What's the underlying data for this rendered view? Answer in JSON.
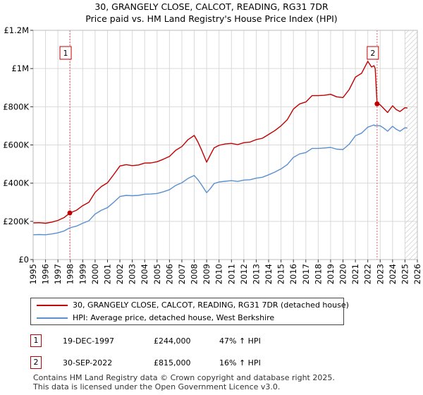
{
  "header": {
    "title": "30, GRANGELY CLOSE, CALCOT, READING, RG31 7DR",
    "subtitle": "Price paid vs. HM Land Registry's House Price Index (HPI)"
  },
  "chart_data": {
    "type": "line",
    "title": "30, GRANGELY CLOSE, CALCOT, READING, RG31 7DR",
    "subtitle": "Price paid vs. HM Land Registry's House Price Index (HPI)",
    "xlim": [
      1995,
      2026
    ],
    "ylim": [
      0,
      1200000
    ],
    "x_ticks": [
      1995,
      1996,
      1997,
      1998,
      1999,
      2000,
      2001,
      2002,
      2003,
      2004,
      2005,
      2006,
      2007,
      2008,
      2009,
      2010,
      2011,
      2012,
      2013,
      2014,
      2015,
      2016,
      2017,
      2018,
      2019,
      2020,
      2021,
      2022,
      2023,
      2024,
      2025,
      2026
    ],
    "x_tick_labels": [
      "1995",
      "1996",
      "1997",
      "1998",
      "1999",
      "2000",
      "2001",
      "2002",
      "2003",
      "2004",
      "2005",
      "2006",
      "2007",
      "2008",
      "2009",
      "2010",
      "2011",
      "2012",
      "2013",
      "2014",
      "2015",
      "2016",
      "2017",
      "2018",
      "2019",
      "2020",
      "2021",
      "2022",
      "2023",
      "2024",
      "2025",
      "2026"
    ],
    "y_ticks": [
      0,
      200000,
      400000,
      600000,
      800000,
      1000000,
      1200000
    ],
    "y_tick_labels": [
      "£0",
      "£200K",
      "£400K",
      "£600K",
      "£800K",
      "£1M",
      "£1.2M"
    ],
    "grid": true,
    "hatched_future_from": 2025.0,
    "series": [
      {
        "name": "30, GRANGELY CLOSE, CALCOT, READING, RG31 7DR (detached house)",
        "color": "#c00000",
        "x": [
          1995.0,
          1995.5,
          1996.0,
          1996.5,
          1997.0,
          1997.5,
          1997.96,
          1998.5,
          1999.0,
          1999.5,
          2000.0,
          2000.5,
          2001.0,
          2001.5,
          2002.0,
          2002.5,
          2003.0,
          2003.5,
          2004.0,
          2004.5,
          2005.0,
          2005.5,
          2006.0,
          2006.5,
          2007.0,
          2007.5,
          2008.0,
          2008.3,
          2008.6,
          2009.0,
          2009.3,
          2009.6,
          2010.0,
          2010.5,
          2011.0,
          2011.5,
          2012.0,
          2012.5,
          2013.0,
          2013.5,
          2014.0,
          2014.5,
          2015.0,
          2015.5,
          2016.0,
          2016.5,
          2017.0,
          2017.5,
          2018.0,
          2018.5,
          2019.0,
          2019.5,
          2020.0,
          2020.5,
          2021.0,
          2021.5,
          2022.0,
          2022.3,
          2022.5,
          2022.6,
          2022.75,
          2023.0,
          2023.3,
          2023.6,
          2024.0,
          2024.3,
          2024.6,
          2025.0,
          2025.2
        ],
        "values": [
          192000,
          193000,
          190000,
          196000,
          205000,
          220000,
          244000,
          258000,
          282000,
          300000,
          352000,
          382000,
          402000,
          445000,
          490000,
          497000,
          492000,
          495000,
          505000,
          506000,
          512000,
          525000,
          540000,
          572000,
          592000,
          628000,
          650000,
          615000,
          572000,
          510000,
          548000,
          585000,
          598000,
          605000,
          608000,
          602000,
          612000,
          615000,
          628000,
          635000,
          655000,
          675000,
          700000,
          732000,
          788000,
          815000,
          825000,
          858000,
          858000,
          860000,
          865000,
          852000,
          848000,
          890000,
          955000,
          975000,
          1038000,
          1008000,
          1015000,
          1000000,
          815000,
          810000,
          790000,
          770000,
          805000,
          785000,
          775000,
          795000,
          793000
        ]
      },
      {
        "name": "HPI: Average price, detached house, West Berkshire",
        "color": "#5a8fd0",
        "x": [
          1995.0,
          1995.5,
          1996.0,
          1996.5,
          1997.0,
          1997.5,
          1997.96,
          1998.5,
          1999.0,
          1999.5,
          2000.0,
          2000.5,
          2001.0,
          2001.5,
          2002.0,
          2002.5,
          2003.0,
          2003.5,
          2004.0,
          2004.5,
          2005.0,
          2005.5,
          2006.0,
          2006.5,
          2007.0,
          2007.5,
          2008.0,
          2008.3,
          2008.6,
          2009.0,
          2009.3,
          2009.6,
          2010.0,
          2010.5,
          2011.0,
          2011.5,
          2012.0,
          2012.5,
          2013.0,
          2013.5,
          2014.0,
          2014.5,
          2015.0,
          2015.5,
          2016.0,
          2016.5,
          2017.0,
          2017.5,
          2018.0,
          2018.5,
          2019.0,
          2019.5,
          2020.0,
          2020.5,
          2021.0,
          2021.5,
          2022.0,
          2022.3,
          2022.5,
          2022.6,
          2022.75,
          2023.0,
          2023.3,
          2023.6,
          2024.0,
          2024.3,
          2024.6,
          2025.0,
          2025.2
        ],
        "values": [
          130000,
          131000,
          130000,
          134000,
          140000,
          150000,
          166000,
          175000,
          190000,
          203000,
          238000,
          258000,
          272000,
          300000,
          330000,
          336000,
          334000,
          336000,
          342000,
          343000,
          346000,
          355000,
          366000,
          388000,
          402000,
          425000,
          440000,
          418000,
          390000,
          350000,
          372000,
          398000,
          406000,
          410000,
          413000,
          409000,
          416000,
          418000,
          426000,
          431000,
          444000,
          458000,
          475000,
          497000,
          535000,
          553000,
          560000,
          582000,
          582000,
          584000,
          587000,
          578000,
          576000,
          604000,
          648000,
          662000,
          693000,
          700000,
          705000,
          700000,
          702000,
          700000,
          688000,
          672000,
          698000,
          682000,
          672000,
          690000,
          688000
        ]
      }
    ],
    "annotations": [
      {
        "label": "1",
        "x": 1997.96,
        "y": 244000,
        "date": "19-DEC-1997",
        "price": "£244,000",
        "hpi": "47% ↑ HPI"
      },
      {
        "label": "2",
        "x": 2022.75,
        "y": 815000,
        "date": "30-SEP-2022",
        "price": "£815,000",
        "hpi": "16% ↑ HPI"
      }
    ]
  },
  "legend": {
    "items": [
      {
        "label": "30, GRANGELY CLOSE, CALCOT, READING, RG31 7DR (detached house)",
        "color": "#c00000"
      },
      {
        "label": "HPI: Average price, detached house, West Berkshire",
        "color": "#5a8fd0"
      }
    ]
  },
  "footer": {
    "line1": "Contains HM Land Registry data © Crown copyright and database right 2025.",
    "line2": "This data is licensed under the Open Government Licence v3.0."
  }
}
